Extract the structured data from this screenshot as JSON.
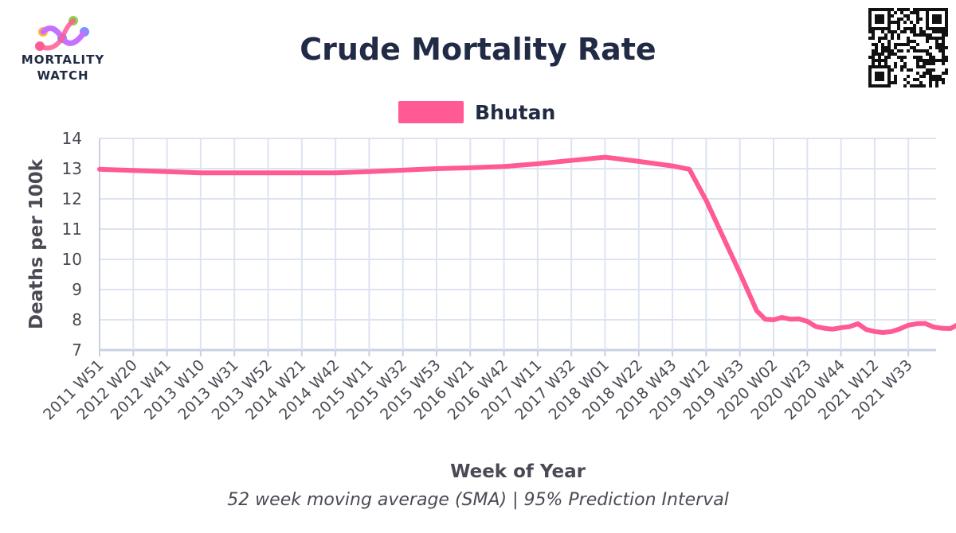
{
  "logo": {
    "line1": "MORTALITY",
    "line2": "WATCH",
    "name": "mortality-watch-logo"
  },
  "qr_icon": "qr-code-icon",
  "colors": {
    "series": "#ff5a94",
    "text": "#222b45",
    "grid": "#dde3f0",
    "axis": "#c9d0e2"
  },
  "chart_data": {
    "type": "line",
    "title": "Crude Mortality Rate",
    "subtitle": "52 week moving average (SMA) | 95% Prediction Interval",
    "xlabel": "Week of Year",
    "ylabel": "Deaths per 100k",
    "ylim": [
      7,
      14
    ],
    "yticks": [
      7,
      8,
      9,
      10,
      11,
      12,
      13,
      14
    ],
    "xticks": [
      "2011 W51",
      "2012 W20",
      "2012 W41",
      "2013 W10",
      "2013 W31",
      "2013 W52",
      "2014 W21",
      "2014 W42",
      "2015 W11",
      "2015 W32",
      "2015 W53",
      "2016 W21",
      "2016 W42",
      "2017 W11",
      "2017 W32",
      "2018 W01",
      "2018 W22",
      "2018 W43",
      "2019 W12",
      "2019 W33",
      "2020 W02",
      "2020 W23",
      "2020 W44",
      "2021 W12",
      "2021 W33"
    ],
    "grid": true,
    "legend_position": "top",
    "series": [
      {
        "name": "Bhutan",
        "color": "#ff5a94",
        "points": [
          [
            0,
            12.98
          ],
          [
            1,
            12.94
          ],
          [
            2,
            12.9
          ],
          [
            3,
            12.86
          ],
          [
            4,
            12.86
          ],
          [
            5,
            12.86
          ],
          [
            6,
            12.86
          ],
          [
            7,
            12.86
          ],
          [
            8,
            12.9
          ],
          [
            9,
            12.95
          ],
          [
            10,
            13.0
          ],
          [
            11,
            13.03
          ],
          [
            12,
            13.07
          ],
          [
            13,
            13.16
          ],
          [
            14,
            13.27
          ],
          [
            15,
            13.38
          ],
          [
            16,
            13.24
          ],
          [
            17,
            13.09
          ],
          [
            17.5,
            12.98
          ],
          [
            18,
            11.95
          ],
          [
            18.5,
            10.75
          ],
          [
            19,
            9.55
          ],
          [
            19.5,
            8.3
          ],
          [
            19.75,
            8.02
          ],
          [
            20,
            8.0
          ],
          [
            20.25,
            8.08
          ],
          [
            20.5,
            8.02
          ],
          [
            20.75,
            8.03
          ],
          [
            21,
            7.95
          ],
          [
            21.25,
            7.78
          ],
          [
            21.5,
            7.72
          ],
          [
            21.75,
            7.69
          ],
          [
            22,
            7.74
          ],
          [
            22.25,
            7.77
          ],
          [
            22.5,
            7.87
          ],
          [
            22.75,
            7.68
          ],
          [
            23,
            7.61
          ],
          [
            23.25,
            7.58
          ],
          [
            23.5,
            7.61
          ],
          [
            23.75,
            7.7
          ],
          [
            24,
            7.82
          ],
          [
            24.25,
            7.87
          ],
          [
            24.5,
            7.88
          ],
          [
            24.75,
            7.76
          ],
          [
            25,
            7.72
          ],
          [
            25.25,
            7.71
          ],
          [
            25.45,
            7.83
          ]
        ]
      }
    ]
  }
}
